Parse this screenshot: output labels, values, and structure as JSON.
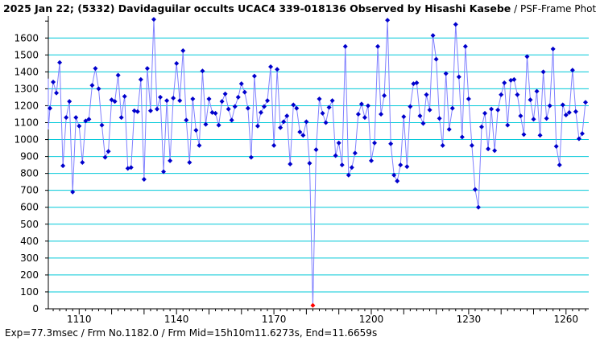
{
  "title": {
    "main": "2025 Jan 22; (5332) Davidaguilar occults UCAC4 339-018136 Observed by Hisashi Kasebe",
    "sub": " / PSF-Frame Photo"
  },
  "footer": "Exp=77.3msec / Frm No.1182.0 / Frm Mid=15h10m11.6273s,  End=11.6659s",
  "colors": {
    "background": "#ffffff",
    "grid": "#00c8d8",
    "line": "#8080ff",
    "point": "#0000cc",
    "highlight": "#ff0000"
  },
  "chart_data": {
    "type": "line",
    "title": "2025 Jan 22; (5332) Davidaguilar occults UCAC4 339-018136 Observed by Hisashi Kasebe / PSF-Frame Photo",
    "xlabel": "",
    "ylabel": "",
    "xlim": [
      1100.5,
      1267
    ],
    "ylim": [
      0,
      1720
    ],
    "xticks": [
      1110,
      1140,
      1170,
      1200,
      1230,
      1260
    ],
    "yticks": [
      0,
      100,
      200,
      300,
      400,
      500,
      600,
      700,
      800,
      900,
      1000,
      1100,
      1200,
      1300,
      1400,
      1500,
      1600
    ],
    "grid": "horizontal",
    "highlight_frame": 1182,
    "x_start": 1097,
    "y": [
      1230,
      1330,
      1360,
      1060,
      1185,
      1340,
      1275,
      1455,
      845,
      1130,
      1225,
      690,
      1130,
      1080,
      865,
      1110,
      1120,
      1320,
      1420,
      1300,
      1085,
      895,
      930,
      1235,
      1225,
      1380,
      1130,
      1255,
      830,
      835,
      1170,
      1165,
      1355,
      765,
      1420,
      1170,
      1710,
      1180,
      1250,
      810,
      1230,
      875,
      1245,
      1450,
      1230,
      1525,
      1115,
      865,
      1240,
      1055,
      965,
      1405,
      1090,
      1240,
      1160,
      1155,
      1085,
      1225,
      1270,
      1180,
      1115,
      1195,
      1250,
      1330,
      1280,
      1185,
      895,
      1375,
      1080,
      1160,
      1195,
      1230,
      1430,
      965,
      1415,
      1070,
      1105,
      1140,
      855,
      1205,
      1185,
      1045,
      1025,
      1105,
      860,
      20,
      940,
      1240,
      1155,
      1100,
      1190,
      1230,
      905,
      980,
      850,
      1550,
      790,
      835,
      920,
      1150,
      1210,
      1130,
      1200,
      875,
      980,
      1550,
      1150,
      1260,
      1705,
      975,
      790,
      755,
      850,
      1135,
      840,
      1195,
      1330,
      1335,
      1140,
      1095,
      1265,
      1175,
      1615,
      1475,
      1125,
      965,
      1390,
      1060,
      1185,
      1680,
      1370,
      1015,
      1550,
      1240,
      965,
      705,
      600,
      1075,
      1155,
      945,
      1180,
      935,
      1175,
      1265,
      1335,
      1085,
      1350,
      1355,
      1265,
      1140,
      1030,
      1490,
      1235,
      1120,
      1285,
      1025,
      1400,
      1125,
      1200,
      1535,
      960,
      850,
      1205,
      1145,
      1160,
      1410,
      1165,
      1005,
      1035,
      1220
    ]
  }
}
